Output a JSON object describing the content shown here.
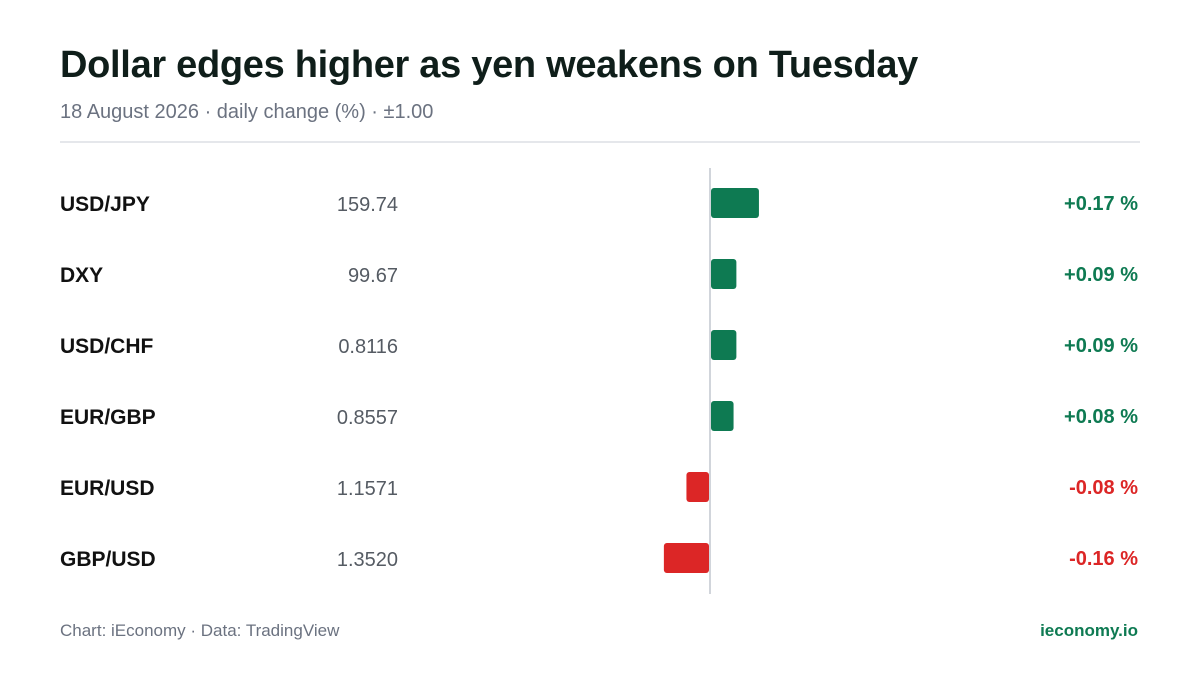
{
  "header": {
    "title": "Dollar edges higher as yen weakens on Tuesday",
    "subtitle": "18 August 2026 · daily change (%) · ±1.00"
  },
  "footer": {
    "source": "Chart: iEconomy · Data: TradingView",
    "brand": "ieconomy.io"
  },
  "colors": {
    "positive": "#0e7a52",
    "negative": "#dc2626",
    "label": "#111111",
    "value": "#555b63",
    "axis": "#d1d5db"
  },
  "chart_data": {
    "type": "bar",
    "orientation": "horizontal",
    "categories": [
      "USD/JPY",
      "DXY",
      "USD/CHF",
      "EUR/GBP",
      "EUR/USD",
      "GBP/USD"
    ],
    "prices": [
      "159.74",
      "99.67",
      "0.8116",
      "0.8557",
      "1.1571",
      "1.3520"
    ],
    "values": [
      0.17,
      0.09,
      0.09,
      0.08,
      -0.08,
      -0.16
    ],
    "value_labels": [
      "+0.17 %",
      "+0.09 %",
      "+0.09 %",
      "+0.08 %",
      "-0.08 %",
      "-0.16 %"
    ],
    "xlim": [
      -1.0,
      1.0
    ],
    "grid": false,
    "legend": "none"
  }
}
